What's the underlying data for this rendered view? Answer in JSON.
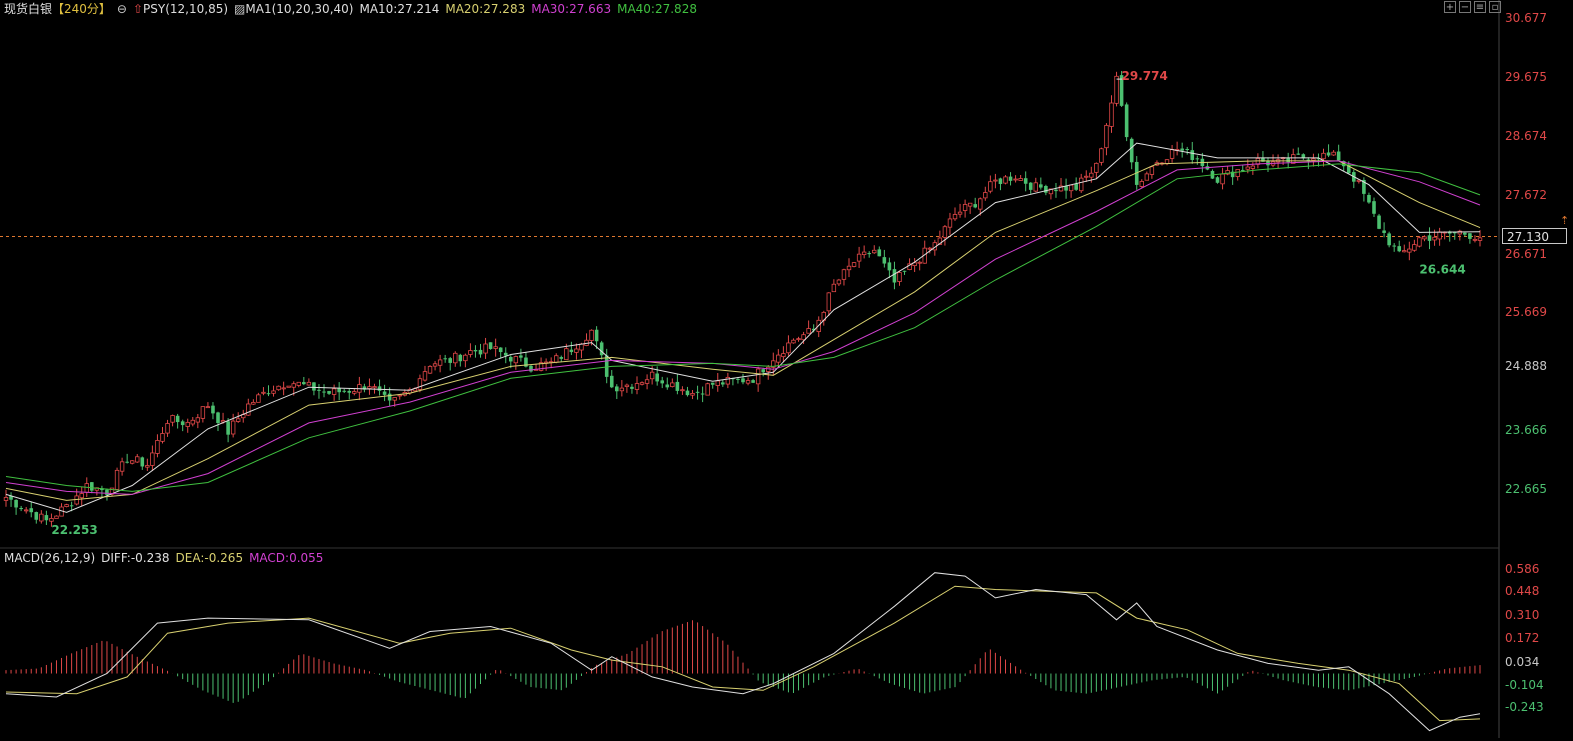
{
  "header": {
    "instrument": "现货白银",
    "period": "【240分】",
    "psy_label": "PSY(12,10,85)",
    "ma_label": "MA1(10,20,30,40)",
    "ma10": "MA10:27.214",
    "ma20": "MA20:27.283",
    "ma30": "MA30:27.663",
    "ma40": "MA40:27.828"
  },
  "macd_header": {
    "label": "MACD(26,12,9)",
    "diff": "DIFF:-0.238",
    "dea": "DEA:-0.265",
    "macd": "MACD:0.055"
  },
  "colors": {
    "up": "#e04848",
    "down": "#4cc070",
    "ma10": "#e0e0e0",
    "ma20": "#d8d070",
    "ma30": "#d040d0",
    "ma40": "#40c040",
    "diff": "#e0e0e0",
    "dea": "#d8d070",
    "current_line": "#e07830"
  },
  "chart_data": [
    {
      "type": "candlestick",
      "title": "现货白银【240分】",
      "ylim": [
        21.9,
        30.8
      ],
      "y_ticks": [
        "30.677",
        "29.675",
        "28.674",
        "27.672",
        "26.671",
        "25.669",
        "24.888",
        "23.666",
        "22.665"
      ],
      "current_price": "27.130",
      "high_annotation": "29.774",
      "low_annotations": [
        "22.253",
        "26.644"
      ],
      "close_path": [
        [
          0,
          22.75
        ],
        [
          4,
          22.55
        ],
        [
          8,
          22.35
        ],
        [
          12,
          22.6
        ],
        [
          16,
          22.95
        ],
        [
          20,
          22.85
        ],
        [
          24,
          23.4
        ],
        [
          28,
          23.3
        ],
        [
          32,
          24.05
        ],
        [
          36,
          24.0
        ],
        [
          40,
          24.3
        ],
        [
          44,
          23.85
        ],
        [
          48,
          24.3
        ],
        [
          52,
          24.55
        ],
        [
          56,
          24.7
        ],
        [
          60,
          24.6
        ],
        [
          64,
          24.5
        ],
        [
          68,
          24.55
        ],
        [
          72,
          24.65
        ],
        [
          76,
          24.3
        ],
        [
          80,
          24.55
        ],
        [
          84,
          25.0
        ],
        [
          88,
          25.05
        ],
        [
          92,
          25.2
        ],
        [
          96,
          25.25
        ],
        [
          100,
          25.1
        ],
        [
          104,
          24.95
        ],
        [
          108,
          25.0
        ],
        [
          112,
          25.25
        ],
        [
          116,
          25.55
        ],
        [
          120,
          24.6
        ],
        [
          124,
          24.65
        ],
        [
          128,
          24.8
        ],
        [
          132,
          24.65
        ],
        [
          136,
          24.5
        ],
        [
          140,
          24.65
        ],
        [
          144,
          24.7
        ],
        [
          148,
          24.75
        ],
        [
          152,
          25.1
        ],
        [
          156,
          25.4
        ],
        [
          160,
          25.55
        ],
        [
          164,
          26.3
        ],
        [
          168,
          26.7
        ],
        [
          172,
          26.9
        ],
        [
          176,
          26.35
        ],
        [
          180,
          26.7
        ],
        [
          184,
          27.0
        ],
        [
          188,
          27.5
        ],
        [
          192,
          27.7
        ],
        [
          196,
          28.05
        ],
        [
          200,
          28.15
        ],
        [
          204,
          27.95
        ],
        [
          208,
          27.95
        ],
        [
          212,
          27.95
        ],
        [
          216,
          28.3
        ],
        [
          220,
          29.75
        ],
        [
          224,
          28.0
        ],
        [
          228,
          28.4
        ],
        [
          232,
          28.6
        ],
        [
          236,
          28.45
        ],
        [
          240,
          28.1
        ],
        [
          244,
          28.25
        ],
        [
          248,
          28.4
        ],
        [
          252,
          28.35
        ],
        [
          256,
          28.45
        ],
        [
          260,
          28.5
        ],
        [
          264,
          28.45
        ],
        [
          268,
          28.0
        ],
        [
          272,
          27.3
        ],
        [
          276,
          26.8
        ],
        [
          280,
          27.1
        ],
        [
          284,
          27.15
        ],
        [
          288,
          27.2
        ],
        [
          292,
          27.13
        ]
      ],
      "ma_series": [
        {
          "name": "MA10",
          "points": [
            [
              0,
              22.8
            ],
            [
              12,
              22.5
            ],
            [
              25,
              22.95
            ],
            [
              40,
              23.9
            ],
            [
              60,
              24.6
            ],
            [
              80,
              24.55
            ],
            [
              100,
              25.15
            ],
            [
              116,
              25.35
            ],
            [
              120,
              25.05
            ],
            [
              140,
              24.7
            ],
            [
              152,
              24.85
            ],
            [
              164,
              25.9
            ],
            [
              180,
              26.7
            ],
            [
              196,
              27.7
            ],
            [
              216,
              28.1
            ],
            [
              224,
              28.7
            ],
            [
              240,
              28.45
            ],
            [
              260,
              28.45
            ],
            [
              270,
              28.0
            ],
            [
              280,
              27.2
            ],
            [
              292,
              27.21
            ]
          ]
        },
        {
          "name": "MA20",
          "points": [
            [
              0,
              22.9
            ],
            [
              12,
              22.7
            ],
            [
              25,
              22.8
            ],
            [
              40,
              23.4
            ],
            [
              60,
              24.3
            ],
            [
              80,
              24.5
            ],
            [
              100,
              24.95
            ],
            [
              120,
              25.1
            ],
            [
              140,
              24.9
            ],
            [
              152,
              24.8
            ],
            [
              164,
              25.4
            ],
            [
              180,
              26.2
            ],
            [
              196,
              27.2
            ],
            [
              216,
              27.9
            ],
            [
              228,
              28.35
            ],
            [
              248,
              28.4
            ],
            [
              264,
              28.4
            ],
            [
              280,
              27.7
            ],
            [
              292,
              27.28
            ]
          ]
        },
        {
          "name": "MA30",
          "points": [
            [
              0,
              23.0
            ],
            [
              12,
              22.85
            ],
            [
              25,
              22.8
            ],
            [
              40,
              23.15
            ],
            [
              60,
              24.0
            ],
            [
              80,
              24.35
            ],
            [
              100,
              24.85
            ],
            [
              120,
              25.05
            ],
            [
              140,
              25.0
            ],
            [
              152,
              24.9
            ],
            [
              164,
              25.2
            ],
            [
              180,
              25.85
            ],
            [
              196,
              26.75
            ],
            [
              216,
              27.55
            ],
            [
              232,
              28.25
            ],
            [
              248,
              28.35
            ],
            [
              264,
              28.4
            ],
            [
              280,
              28.05
            ],
            [
              292,
              27.66
            ]
          ]
        },
        {
          "name": "MA40",
          "points": [
            [
              0,
              23.1
            ],
            [
              12,
              22.95
            ],
            [
              25,
              22.85
            ],
            [
              40,
              23.0
            ],
            [
              60,
              23.75
            ],
            [
              80,
              24.2
            ],
            [
              100,
              24.75
            ],
            [
              120,
              24.95
            ],
            [
              140,
              25.0
            ],
            [
              152,
              24.95
            ],
            [
              164,
              25.1
            ],
            [
              180,
              25.6
            ],
            [
              196,
              26.4
            ],
            [
              216,
              27.3
            ],
            [
              232,
              28.1
            ],
            [
              248,
              28.25
            ],
            [
              264,
              28.35
            ],
            [
              280,
              28.2
            ],
            [
              292,
              27.83
            ]
          ]
        }
      ]
    },
    {
      "type": "macd",
      "title": "MACD(26,12,9)",
      "ylim": [
        -0.36,
        0.64
      ],
      "y_ticks": [
        "0.586",
        "0.448",
        "0.310",
        "0.172",
        "0.034",
        "-0.104",
        "-0.243"
      ],
      "diff_path": [
        [
          0,
          -0.12
        ],
        [
          10,
          -0.14
        ],
        [
          20,
          0.0
        ],
        [
          30,
          0.3
        ],
        [
          40,
          0.33
        ],
        [
          60,
          0.32
        ],
        [
          76,
          0.15
        ],
        [
          84,
          0.25
        ],
        [
          96,
          0.28
        ],
        [
          108,
          0.18
        ],
        [
          116,
          0.02
        ],
        [
          120,
          0.1
        ],
        [
          128,
          -0.02
        ],
        [
          136,
          -0.08
        ],
        [
          146,
          -0.12
        ],
        [
          152,
          -0.06
        ],
        [
          164,
          0.12
        ],
        [
          176,
          0.4
        ],
        [
          184,
          0.6
        ],
        [
          190,
          0.58
        ],
        [
          196,
          0.45
        ],
        [
          204,
          0.5
        ],
        [
          214,
          0.47
        ],
        [
          220,
          0.32
        ],
        [
          224,
          0.42
        ],
        [
          228,
          0.28
        ],
        [
          240,
          0.14
        ],
        [
          250,
          0.06
        ],
        [
          260,
          0.02
        ],
        [
          266,
          0.04
        ],
        [
          274,
          -0.12
        ],
        [
          282,
          -0.34
        ],
        [
          288,
          -0.26
        ],
        [
          292,
          -0.24
        ]
      ],
      "dea_path": [
        [
          0,
          -0.11
        ],
        [
          14,
          -0.12
        ],
        [
          24,
          -0.02
        ],
        [
          32,
          0.24
        ],
        [
          44,
          0.3
        ],
        [
          60,
          0.33
        ],
        [
          78,
          0.18
        ],
        [
          88,
          0.24
        ],
        [
          100,
          0.27
        ],
        [
          112,
          0.14
        ],
        [
          120,
          0.08
        ],
        [
          130,
          0.04
        ],
        [
          140,
          -0.08
        ],
        [
          150,
          -0.1
        ],
        [
          160,
          0.04
        ],
        [
          176,
          0.3
        ],
        [
          188,
          0.52
        ],
        [
          196,
          0.5
        ],
        [
          206,
          0.49
        ],
        [
          216,
          0.48
        ],
        [
          224,
          0.33
        ],
        [
          234,
          0.26
        ],
        [
          244,
          0.12
        ],
        [
          256,
          0.06
        ],
        [
          266,
          0.02
        ],
        [
          276,
          -0.06
        ],
        [
          284,
          -0.28
        ],
        [
          292,
          -0.27
        ]
      ],
      "histogram": [
        0.02,
        0.03,
        0.12,
        0.2,
        0.1,
        0.01,
        -0.1,
        -0.18,
        -0.05,
        0.12,
        0.06,
        0.02,
        -0.05,
        -0.1,
        -0.15,
        0.03,
        -0.08,
        -0.1,
        0.05,
        0.12,
        0.25,
        0.32,
        0.18,
        -0.05,
        -0.12,
        -0.02,
        0.03,
        -0.06,
        -0.12,
        -0.08,
        0.15,
        0.02,
        -0.1,
        -0.12,
        -0.08,
        -0.04,
        -0.02,
        -0.12,
        0.02,
        -0.04,
        -0.08,
        -0.1,
        -0.06,
        -0.02,
        0.03,
        0.05
      ]
    }
  ]
}
